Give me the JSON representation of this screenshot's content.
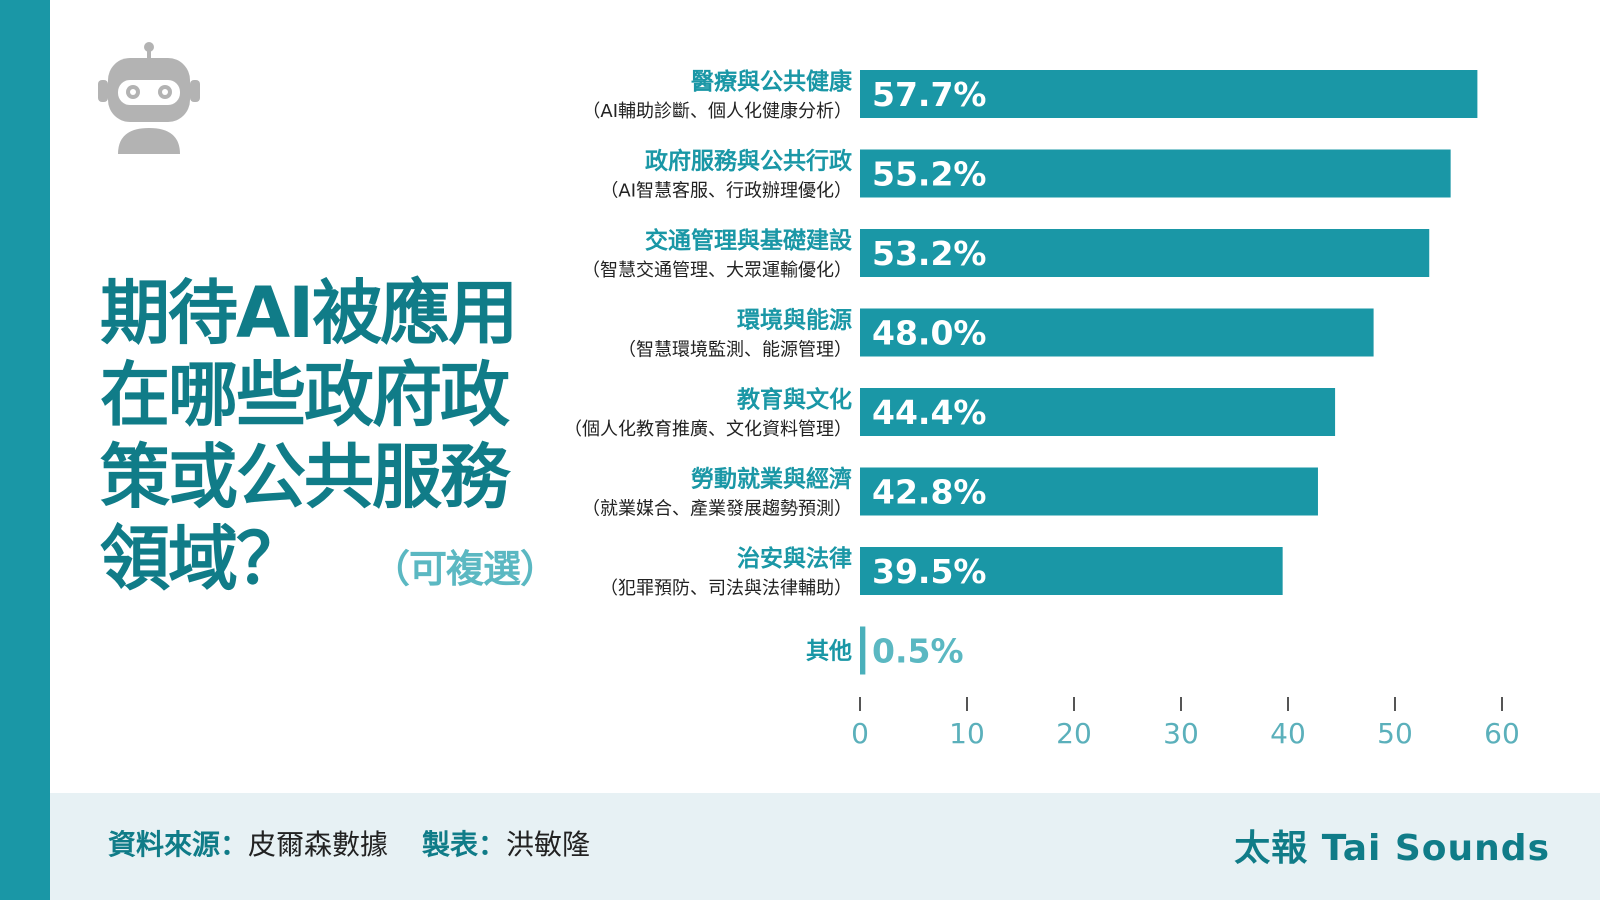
{
  "colors": {
    "accent": "#1a97a6",
    "accent_light": "#5bb8c2",
    "muted_bar": "#4ab0bb",
    "headline": "#107c88",
    "subtitle_text": "#222222",
    "footer_bg": "#e7f1f4",
    "robot": "#b3b3b3",
    "axis": "#555555",
    "axis_label": "#5bb0bb"
  },
  "title": {
    "lines": [
      "期待AI被應用",
      "在哪些政府政",
      "策或公共服務",
      "領域？"
    ],
    "note": "（可複選）"
  },
  "icons": {
    "robot": "robot-icon"
  },
  "chart_data": {
    "type": "bar",
    "orientation": "horizontal",
    "categories": [
      "醫療與公共健康",
      "政府服務與公共行政",
      "交通管理與基礎建設",
      "環境與能源",
      "教育與文化",
      "勞動就業與經濟",
      "治安與法律",
      "其他"
    ],
    "subtitles": [
      "（AI輔助診斷、個人化健康分析）",
      "（AI智慧客服、行政辦理優化）",
      "（智慧交通管理、大眾運輸優化）",
      "（智慧環境監測、能源管理）",
      "（個人化教育推廣、文化資料管理）",
      "（就業媒合、產業發展趨勢預測）",
      "（犯罪預防、司法與法律輔助）",
      ""
    ],
    "values": [
      57.7,
      55.2,
      53.2,
      48.0,
      44.4,
      42.8,
      39.5,
      0.5
    ],
    "value_labels": [
      "57.7%",
      "55.2%",
      "53.2%",
      "48.0%",
      "44.4%",
      "42.8%",
      "39.5%",
      "0.5%"
    ],
    "xlim": [
      0,
      60
    ],
    "xticks": [
      0,
      10,
      20,
      30,
      40,
      50,
      60
    ],
    "xtick_labels": [
      "0",
      "10",
      "20",
      "30",
      "40",
      "50",
      "60"
    ],
    "grid": false,
    "legend": "none"
  },
  "footer": {
    "source_label": "資料來源：",
    "source_value": "皮爾森數據",
    "maker_label": "製表：",
    "maker_value": "洪敏隆",
    "brand": "太報 Tai Sounds"
  }
}
